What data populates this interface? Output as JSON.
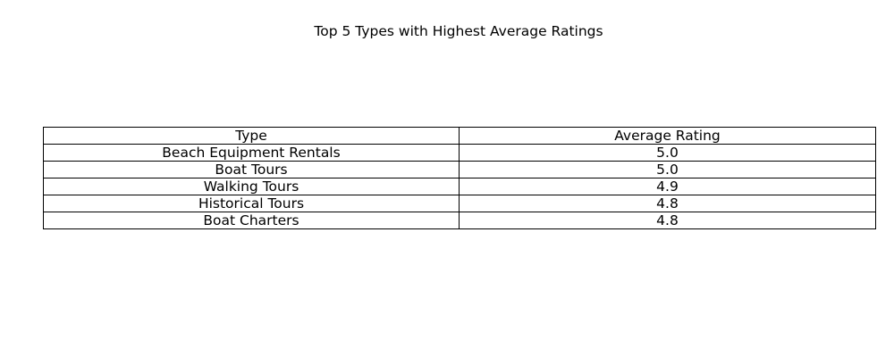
{
  "chart_data": {
    "type": "table",
    "title": "Top 5 Types with Highest Average Ratings",
    "columns": [
      "Type",
      "Average Rating"
    ],
    "rows": [
      [
        "Beach Equipment Rentals",
        "5.0"
      ],
      [
        "Boat Tours",
        "5.0"
      ],
      [
        "Walking Tours",
        "4.9"
      ],
      [
        "Historical Tours",
        "4.8"
      ],
      [
        "Boat Charters",
        "4.8"
      ]
    ]
  }
}
